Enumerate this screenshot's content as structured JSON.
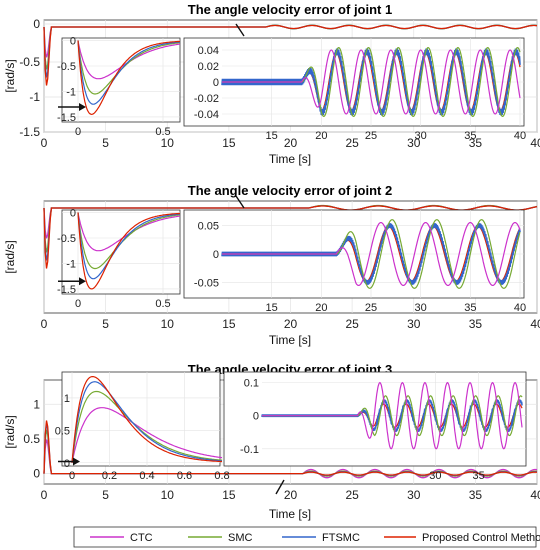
{
  "colors": {
    "CTC": "#cc33cc",
    "SMC": "#77aa33",
    "FTSMC": "#3366cc",
    "Proposed": "#dd2200"
  },
  "chart_data": [
    {
      "id": "joint1",
      "type": "line",
      "title": "The angle velocity error of joint 1",
      "xlabel": "Time [s]",
      "ylabel": "[rad/s]",
      "xlim": [
        0,
        40
      ],
      "ylim": [
        -1.5,
        0.1
      ],
      "xticks": [
        "0",
        "5",
        "10",
        "15",
        "20",
        "25",
        "30",
        "35",
        "40"
      ],
      "yticks": [
        "0",
        "-0.5",
        "-1",
        "-1.5"
      ],
      "inset_left": {
        "xlim": [
          0,
          0.6
        ],
        "ylim": [
          -1.6,
          0.05
        ],
        "xticks": [
          "0",
          "0.5"
        ],
        "yticks": [
          "0",
          "-0.5",
          "-1",
          "-1.5"
        ],
        "peaks": {
          "CTC": -0.75,
          "SMC": -1.05,
          "FTSMC": -1.25,
          "Proposed": -1.45
        },
        "peak_t": {
          "CTC": 0.12,
          "SMC": 0.1,
          "FTSMC": 0.09,
          "Proposed": 0.08
        }
      },
      "inset_right": {
        "xlim": [
          10,
          40
        ],
        "ylim": [
          -0.05,
          0.05
        ],
        "xticks": [
          "15",
          "20",
          "25",
          "30",
          "35",
          "40"
        ],
        "yticks": [
          "0.04",
          "0.02",
          "0",
          "-0.02",
          "-0.04"
        ],
        "amp": {
          "CTC": 0.04,
          "SMC": 0.043,
          "FTSMC": 0.038,
          "Proposed": 0.036
        },
        "start": 18,
        "period": 3
      }
    },
    {
      "id": "joint2",
      "type": "line",
      "title": "The angle velocity error of joint 2",
      "xlabel": "Time [s]",
      "ylabel": "[rad/s]",
      "xlim": [
        0,
        40
      ],
      "ylim": [
        -1.5,
        0.1
      ],
      "xticks": [
        "0",
        "5",
        "10",
        "15",
        "20",
        "25",
        "30",
        "35",
        "40"
      ],
      "yticks": [],
      "inset_left": {
        "xlim": [
          0,
          0.6
        ],
        "ylim": [
          -1.6,
          0.05
        ],
        "xticks": [
          "0",
          "0.5"
        ],
        "yticks": [
          "0",
          "-0.5",
          "-1",
          "-1.5"
        ],
        "peaks": {
          "CTC": -0.75,
          "SMC": -1.1,
          "FTSMC": -1.3,
          "Proposed": -1.5
        },
        "peak_t": {
          "CTC": 0.12,
          "SMC": 0.1,
          "FTSMC": 0.09,
          "Proposed": 0.08
        }
      },
      "inset_right": {
        "xlim": [
          10,
          40
        ],
        "ylim": [
          -0.07,
          0.07
        ],
        "xticks": [
          "15",
          "20",
          "25",
          "30",
          "35",
          "40"
        ],
        "yticks": [
          "0.05",
          "0",
          "-0.05"
        ],
        "amp": {
          "CTC": 0.055,
          "SMC": 0.06,
          "FTSMC": 0.05,
          "Proposed": 0.048
        },
        "start": 21.5,
        "period": 4.5
      }
    },
    {
      "id": "joint3",
      "type": "line",
      "title": "The angle velocity error of joint 3",
      "xlabel": "Time [s]",
      "ylabel": "[rad/s]",
      "xlim": [
        0,
        40
      ],
      "ylim": [
        -0.15,
        1.35
      ],
      "xticks": [
        "0",
        "5",
        "10",
        "15",
        "20",
        "25",
        "30",
        "35",
        "40"
      ],
      "yticks": [
        "1",
        "0.5",
        "0"
      ],
      "inset_left": {
        "xlim": [
          0,
          0.8
        ],
        "ylim": [
          -0.05,
          1.4
        ],
        "xticks": [
          "0",
          "0.2",
          "0.4",
          "0.6",
          "0.8"
        ],
        "yticks": [
          "1",
          "0.5",
          "0"
        ],
        "peaks": {
          "CTC": 0.85,
          "SMC": 1.1,
          "FTSMC": 1.25,
          "Proposed": 1.33
        },
        "peak_t": {
          "CTC": 0.16,
          "SMC": 0.13,
          "FTSMC": 0.12,
          "Proposed": 0.11
        }
      },
      "inset_right": {
        "xlim": [
          10,
          40
        ],
        "ylim": [
          -0.14,
          0.12
        ],
        "xticks": [
          "30",
          "35"
        ],
        "yticks": [
          "0.1",
          "0",
          "-0.1"
        ],
        "amp": {
          "CTC": 0.1,
          "SMC": 0.06,
          "FTSMC": 0.045,
          "Proposed": 0.035
        },
        "start": 21,
        "period": 2.6
      }
    }
  ],
  "legend": {
    "items": [
      "CTC",
      "SMC",
      "FTSMC",
      "Proposed Control Method"
    ],
    "placement": "bottom"
  }
}
